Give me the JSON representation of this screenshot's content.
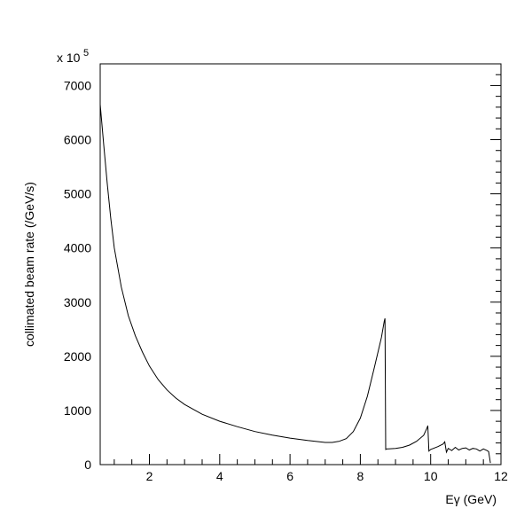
{
  "chart_data": {
    "type": "line",
    "title": "",
    "xlabel": "Eγ (GeV)",
    "ylabel": "collimated beam rate (/GeV/s)",
    "y_multiplier": {
      "base": "x 10",
      "exponent": "5"
    },
    "xlim": [
      0.6,
      12
    ],
    "ylim": [
      0,
      7400
    ],
    "x_ticks": [
      2,
      4,
      6,
      8,
      10,
      12
    ],
    "x_tick_labels": [
      "2",
      "4",
      "6",
      "8",
      "10",
      "12"
    ],
    "y_ticks": [
      0,
      1000,
      2000,
      3000,
      4000,
      5000,
      6000,
      7000
    ],
    "y_tick_labels": [
      "0",
      "1000",
      "2000",
      "3000",
      "4000",
      "5000",
      "6000",
      "7000"
    ],
    "grid": false,
    "legend": "none",
    "line_color": "#000000",
    "series": [
      {
        "x": [
          0.6,
          0.7,
          0.8,
          0.9,
          1.0,
          1.2,
          1.4,
          1.6,
          1.8,
          2.0,
          2.25,
          2.5,
          2.75,
          3.0,
          3.5,
          4.0,
          4.5,
          5.0,
          5.5,
          6.0,
          6.5,
          7.0,
          7.2,
          7.4,
          7.6,
          7.8,
          8.0,
          8.2,
          8.4,
          8.6,
          8.68,
          8.7,
          8.72,
          8.76,
          8.8,
          9.0,
          9.2,
          9.4,
          9.6,
          9.8,
          9.9,
          9.92,
          9.95,
          10.0,
          10.2,
          10.35,
          10.4,
          10.45,
          10.5,
          10.6,
          10.7,
          10.8,
          10.9,
          11.0,
          11.1,
          11.2,
          11.3,
          11.4,
          11.5,
          11.6,
          11.65,
          11.7
        ],
        "y": [
          6650,
          5900,
          5200,
          4550,
          4000,
          3280,
          2750,
          2380,
          2080,
          1820,
          1570,
          1380,
          1230,
          1110,
          930,
          800,
          700,
          610,
          545,
          490,
          445,
          410,
          410,
          430,
          480,
          610,
          860,
          1260,
          1800,
          2350,
          2650,
          2700,
          280,
          290,
          290,
          300,
          320,
          360,
          430,
          540,
          680,
          720,
          250,
          280,
          330,
          380,
          420,
          230,
          300,
          260,
          320,
          270,
          300,
          310,
          270,
          300,
          290,
          250,
          290,
          260,
          240,
          30
        ]
      }
    ]
  }
}
